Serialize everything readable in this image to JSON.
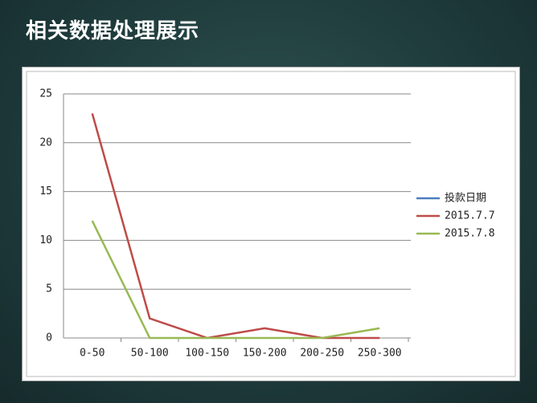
{
  "slide": {
    "title": "相关数据处理展示"
  },
  "chart_data": {
    "type": "line",
    "categories": [
      "0-50",
      "50-100",
      "100-150",
      "150-200",
      "200-250",
      "250-300"
    ],
    "series": [
      {
        "name": "投款日期",
        "color": "#4a7ebb",
        "values": [
          null,
          null,
          null,
          null,
          null,
          null
        ]
      },
      {
        "name": "2015.7.7",
        "color": "#be4b48",
        "values": [
          23,
          2,
          0,
          1,
          0,
          0
        ]
      },
      {
        "name": "2015.7.8",
        "color": "#98b954",
        "values": [
          12,
          0,
          0,
          0,
          0,
          1
        ]
      }
    ],
    "ylim": [
      0,
      25
    ],
    "yticks": [
      0,
      5,
      10,
      15,
      20,
      25
    ],
    "grid": true,
    "legend": "right"
  }
}
